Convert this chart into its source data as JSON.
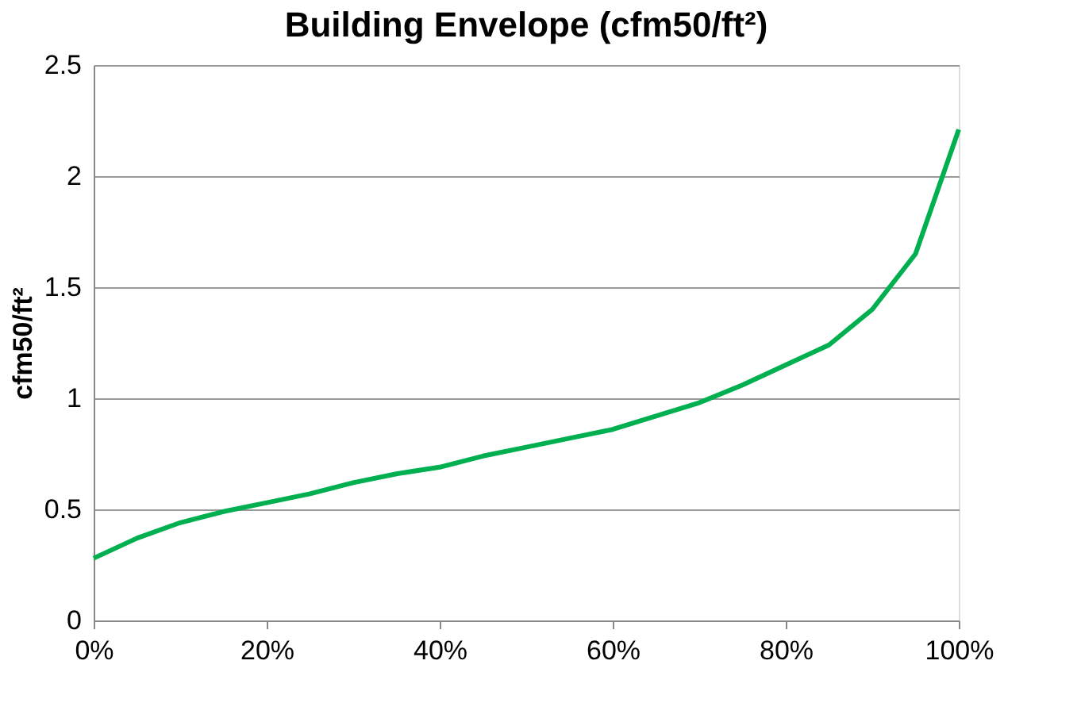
{
  "chart_data": {
    "type": "line",
    "title": "Building Envelope (cfm50/ft²)",
    "ylabel": "cfm50/ft²",
    "x": [
      0,
      5,
      10,
      15,
      20,
      25,
      30,
      35,
      40,
      45,
      50,
      55,
      60,
      65,
      70,
      75,
      80,
      85,
      90,
      95,
      100
    ],
    "series": [
      {
        "color": "#00b050",
        "values": [
          0.28,
          0.37,
          0.44,
          0.49,
          0.53,
          0.57,
          0.62,
          0.66,
          0.69,
          0.74,
          0.78,
          0.82,
          0.86,
          0.92,
          0.98,
          1.06,
          1.15,
          1.24,
          1.4,
          1.65,
          2.21
        ]
      }
    ],
    "xlim": [
      0,
      100
    ],
    "xticks": [
      {
        "value": 0,
        "label": "0%"
      },
      {
        "value": 20,
        "label": "20%"
      },
      {
        "value": 40,
        "label": "40%"
      },
      {
        "value": 60,
        "label": "60%"
      },
      {
        "value": 80,
        "label": "80%"
      },
      {
        "value": 100,
        "label": "100%"
      }
    ],
    "ylim": [
      0,
      2.5
    ],
    "yticks": [
      0,
      0.5,
      1,
      1.5,
      2,
      2.5
    ],
    "grid": "y",
    "legend": false,
    "marker": "none",
    "line_style": "solid"
  }
}
